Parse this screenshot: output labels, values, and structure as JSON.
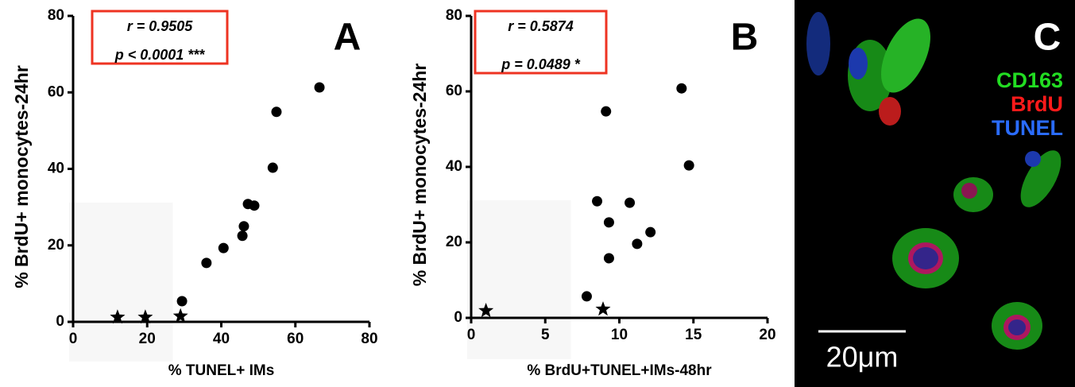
{
  "chart_data": [
    {
      "type": "scatter",
      "panel_label": "A",
      "xlabel": "% TUNEL+ IMs",
      "ylabel": "% BrdU+ monocytes-24hr",
      "annotations": [
        "r = 0.9505",
        "p < 0.0001  ***"
      ],
      "xlim": [
        0,
        80
      ],
      "xticks": [
        0,
        20,
        40,
        60,
        80
      ],
      "ylim": [
        0,
        80
      ],
      "yticks": [
        0,
        20,
        40,
        60,
        80
      ],
      "series": [
        {
          "marker": "star",
          "color": "#000000",
          "x": [
            12,
            19.5,
            29
          ],
          "values": [
            1.2,
            1.2,
            1.5
          ]
        },
        {
          "marker": "circle",
          "color": "#000000",
          "x": [
            29.4,
            36,
            40.6,
            45.7,
            46.1,
            47.2,
            48.9,
            53.9,
            54.9,
            66.5
          ],
          "values": [
            5.4,
            15.4,
            19.3,
            22.5,
            25,
            30.8,
            30.4,
            40.3,
            54.9,
            61.3
          ]
        }
      ]
    },
    {
      "type": "scatter",
      "panel_label": "B",
      "xlabel": "% BrdU+TUNEL+IMs-48hr",
      "ylabel": "% BrdU+ monocytes-24hr",
      "annotations": [
        "r = 0.5874",
        "p = 0.0489 *"
      ],
      "xlim": [
        0,
        20
      ],
      "xticks": [
        0,
        5,
        10,
        15,
        20
      ],
      "ylim": [
        0,
        80
      ],
      "yticks": [
        0,
        20,
        40,
        60,
        80
      ],
      "series": [
        {
          "marker": "star",
          "color": "#000000",
          "x": [
            1.0,
            8.9
          ],
          "values": [
            1.9,
            2.3
          ]
        },
        {
          "marker": "circle",
          "color": "#000000",
          "x": [
            7.8,
            8.5,
            9.1,
            9.3,
            9.3,
            11.2,
            10.7,
            12.1,
            14.2,
            14.7
          ],
          "values": [
            5.7,
            30.9,
            54.7,
            25.3,
            15.8,
            19.6,
            30.5,
            22.7,
            60.8,
            40.4
          ]
        }
      ]
    }
  ],
  "image_panel": {
    "panel_label": "C",
    "channels": [
      {
        "name": "CD163",
        "color": "#22dd22"
      },
      {
        "name": "BrdU",
        "color": "#ff1a1a"
      },
      {
        "name": "TUNEL",
        "color": "#2a6cff"
      }
    ],
    "scale_bar": "20μm"
  }
}
